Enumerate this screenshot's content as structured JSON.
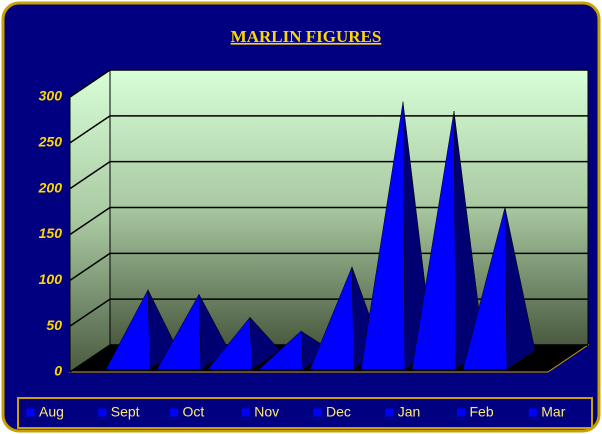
{
  "chart_data": {
    "type": "pyramid3d",
    "title": "MARLIN FIGURES",
    "categories": [
      "Aug",
      "Sept",
      "Oct",
      "Nov",
      "Dec",
      "Jan",
      "Feb",
      "Mar"
    ],
    "values": [
      75,
      70,
      45,
      30,
      100,
      280,
      270,
      165
    ],
    "color": "#0000ff",
    "ylim": [
      0,
      300
    ],
    "yticks": [
      0,
      50,
      100,
      150,
      200,
      250,
      300
    ],
    "grid": true,
    "legend": "bottom"
  }
}
